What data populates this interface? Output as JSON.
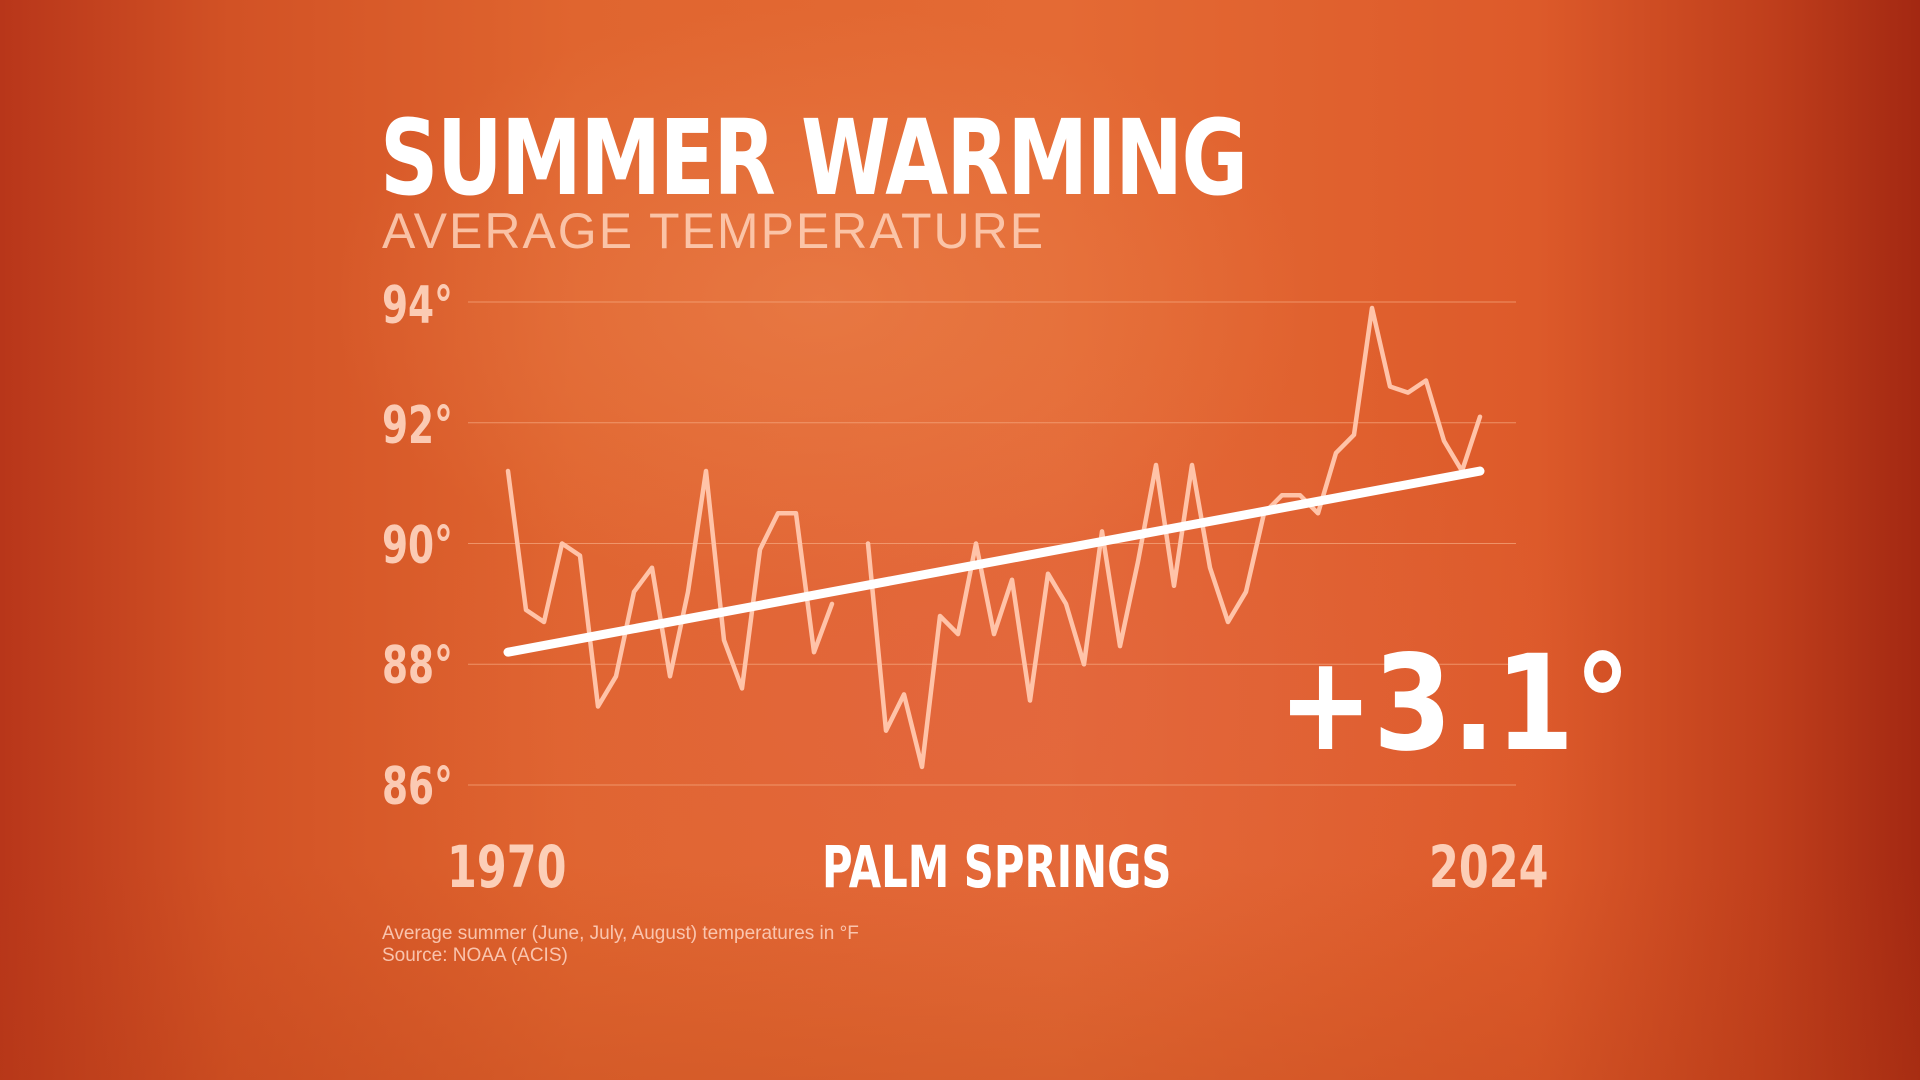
{
  "header": {
    "title": "SUMMER WARMING",
    "subtitle": "AVERAGE TEMPERATURE"
  },
  "highlight": {
    "change_label": "+3.1°"
  },
  "location": "PALM SPRINGS",
  "footer": {
    "note": "Average summer (June, July, August) temperatures in °F",
    "source": "Source: NOAA (ACIS)"
  },
  "colors": {
    "background": "#e0652f",
    "series_line": "#ffc3a8",
    "trend_line": "#ffffff",
    "gridline": "#f7a980",
    "text_primary": "#ffffff",
    "text_muted": "#ffd8c4"
  },
  "chart_data": {
    "type": "line",
    "title": "SUMMER WARMING",
    "subtitle": "AVERAGE TEMPERATURE",
    "xlabel": "",
    "ylabel": "",
    "x_tick_labels": [
      "1970",
      "2024"
    ],
    "y_tick_labels": [
      "94°",
      "92°",
      "90°",
      "88°",
      "86°"
    ],
    "y_ticks": [
      94,
      92,
      90,
      88,
      86
    ],
    "xlim": [
      1970,
      2024
    ],
    "ylim": [
      86,
      94
    ],
    "grid": "horizontal",
    "series": [
      {
        "kind": "observed",
        "x": [
          1970,
          1971,
          1972,
          1973,
          1974,
          1975,
          1976,
          1977,
          1978,
          1979,
          1980,
          1981,
          1982,
          1983,
          1984,
          1985,
          1986,
          1987,
          1988,
          1989,
          1990,
          1991,
          1992,
          1993,
          1994,
          1995,
          1996,
          1997,
          1998,
          1999,
          2000,
          2001,
          2002,
          2003,
          2004,
          2005,
          2006,
          2007,
          2008,
          2009,
          2010,
          2011,
          2012,
          2013,
          2014,
          2015,
          2016,
          2017,
          2018,
          2019,
          2020,
          2021,
          2022,
          2023,
          2024
        ],
        "y": [
          91.2,
          88.9,
          88.7,
          90.0,
          89.8,
          87.3,
          87.8,
          89.2,
          89.6,
          87.8,
          89.2,
          91.2,
          88.4,
          87.6,
          89.9,
          90.5,
          90.5,
          88.2,
          89.0,
          null,
          90.0,
          86.9,
          87.5,
          86.3,
          88.8,
          88.5,
          90.0,
          88.5,
          89.4,
          87.4,
          89.5,
          89.0,
          88.0,
          90.2,
          88.3,
          89.7,
          91.3,
          89.3,
          91.3,
          89.6,
          88.7,
          89.2,
          90.5,
          90.8,
          90.8,
          90.5,
          91.5,
          91.8,
          93.9,
          92.6,
          92.5,
          92.7,
          91.7,
          91.2,
          92.1
        ]
      },
      {
        "kind": "trend",
        "x": [
          1970,
          2024
        ],
        "y": [
          88.2,
          91.2
        ]
      }
    ],
    "annotations": [
      "+3.1°"
    ]
  }
}
